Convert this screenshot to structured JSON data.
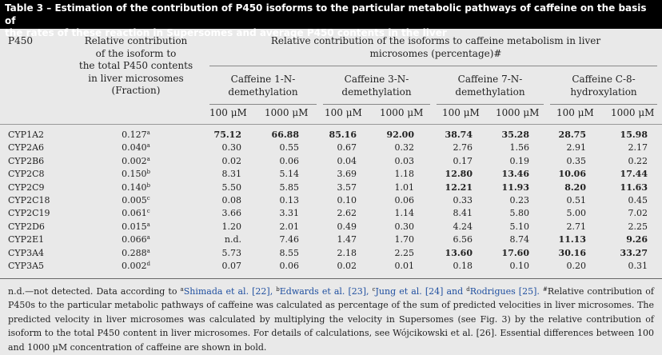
{
  "title_line1": "Table 3 – Estimation of the contribution of P450 isoforms to the particular metabolic pathways of caffeine on the basis of",
  "title_line2": "the rates of these reaction in Supersomes and average P450 contents in the liver",
  "headers": {
    "p450": "P450",
    "relative_line1": "Relative contribution",
    "relative_line2": "of the isoform to",
    "relative_line3": "the total P450 contents",
    "relative_line4": "in liver microsomes",
    "relative_line5": "(Fraction)",
    "span_line1": "Relative contribution of the isoforms to caffeine metabolism in liver",
    "span_line2": "microsomes (percentage)#",
    "groups": [
      {
        "line1": "Caffeine 1-N-",
        "line2": "demethylation"
      },
      {
        "line1": "Caffeine 3-N-",
        "line2": "demethylation"
      },
      {
        "line1": "Caffeine 7-N-",
        "line2": "demethylation"
      },
      {
        "line1": "Caffeine C-8-",
        "line2": "hydroxylation"
      }
    ],
    "conc_100": "100 μM",
    "conc_1000": "1000 μM"
  },
  "rows": [
    {
      "name": "CYP1A2",
      "frac": "0.127",
      "sup": "a",
      "v": [
        "75.12",
        "66.88",
        "85.16",
        "92.00",
        "38.74",
        "35.28",
        "28.75",
        "15.98"
      ],
      "bold": [
        1,
        1,
        1,
        1,
        1,
        1,
        1,
        1
      ]
    },
    {
      "name": "CYP2A6",
      "frac": "0.040",
      "sup": "a",
      "v": [
        "0.30",
        "0.55",
        "0.67",
        "0.32",
        "2.76",
        "1.56",
        "2.91",
        "2.17"
      ],
      "bold": [
        0,
        0,
        0,
        0,
        0,
        0,
        0,
        0
      ]
    },
    {
      "name": "CYP2B6",
      "frac": "0.002",
      "sup": "a",
      "v": [
        "0.02",
        "0.06",
        "0.04",
        "0.03",
        "0.17",
        "0.19",
        "0.35",
        "0.22"
      ],
      "bold": [
        0,
        0,
        0,
        0,
        0,
        0,
        0,
        0
      ]
    },
    {
      "name": "CYP2C8",
      "frac": "0.150",
      "sup": "b",
      "v": [
        "8.31",
        "5.14",
        "3.69",
        "1.18",
        "12.80",
        "13.46",
        "10.06",
        "17.44"
      ],
      "bold": [
        0,
        0,
        0,
        0,
        1,
        1,
        1,
        1
      ]
    },
    {
      "name": "CYP2C9",
      "frac": "0.140",
      "sup": "b",
      "v": [
        "5.50",
        "5.85",
        "3.57",
        "1.01",
        "12.21",
        "11.93",
        "8.20",
        "11.63"
      ],
      "bold": [
        0,
        0,
        0,
        0,
        1,
        1,
        1,
        1
      ]
    },
    {
      "name": "CYP2C18",
      "frac": "0.005",
      "sup": "c",
      "v": [
        "0.08",
        "0.13",
        "0.10",
        "0.06",
        "0.33",
        "0.23",
        "0.51",
        "0.45"
      ],
      "bold": [
        0,
        0,
        0,
        0,
        0,
        0,
        0,
        0
      ]
    },
    {
      "name": "CYP2C19",
      "frac": "0.061",
      "sup": "c",
      "v": [
        "3.66",
        "3.31",
        "2.62",
        "1.14",
        "8.41",
        "5.80",
        "5.00",
        "7.02"
      ],
      "bold": [
        0,
        0,
        0,
        0,
        0,
        0,
        0,
        0
      ]
    },
    {
      "name": "CYP2D6",
      "frac": "0.015",
      "sup": "a",
      "v": [
        "1.20",
        "2.01",
        "0.49",
        "0.30",
        "4.24",
        "5.10",
        "2.71",
        "2.25"
      ],
      "bold": [
        0,
        0,
        0,
        0,
        0,
        0,
        0,
        0
      ]
    },
    {
      "name": "CYP2E1",
      "frac": "0.066",
      "sup": "a",
      "v": [
        "n.d.",
        "7.46",
        "1.47",
        "1.70",
        "6.56",
        "8.74",
        "11.13",
        "9.26"
      ],
      "bold": [
        0,
        0,
        0,
        0,
        0,
        0,
        1,
        1
      ]
    },
    {
      "name": "CYP3A4",
      "frac": "0.288",
      "sup": "a",
      "v": [
        "5.73",
        "8.55",
        "2.18",
        "2.25",
        "13.60",
        "17.60",
        "30.16",
        "33.27"
      ],
      "bold": [
        0,
        0,
        0,
        0,
        1,
        1,
        1,
        1
      ]
    },
    {
      "name": "CYP3A5",
      "frac": "0.002",
      "sup": "d",
      "v": [
        "0.07",
        "0.06",
        "0.02",
        "0.01",
        "0.18",
        "0.10",
        "0.20",
        "0.31"
      ],
      "bold": [
        0,
        0,
        0,
        0,
        0,
        0,
        0,
        0
      ]
    }
  ],
  "footnote": {
    "p1": "n.d.—not detected. Data according to ",
    "sa": "a",
    "r1": "Shimada et al. [22], ",
    "sb": "b",
    "r2": "Edwards et al. [23], ",
    "sc": "c",
    "r3": "Jung et al. [24] and ",
    "sd": "d",
    "r4": "Rodrigues [25]. ",
    "hash": "#",
    "rest": "Relative contribution of P450s to the particular metabolic pathways of caffeine was calculated as percentage of the sum of predicted velocities in liver microsomes. The predicted velocity in liver microsomes was calculated by multiplying the velocity in Supersomes (see Fig. 3) by the relative contribution of isoform to the total P450 content in liver microsomes. For details of calculations, see Wójcikowski et al. [26]. Essential differences between 100 and 1000 μM concentration of caffeine are shown in bold."
  }
}
